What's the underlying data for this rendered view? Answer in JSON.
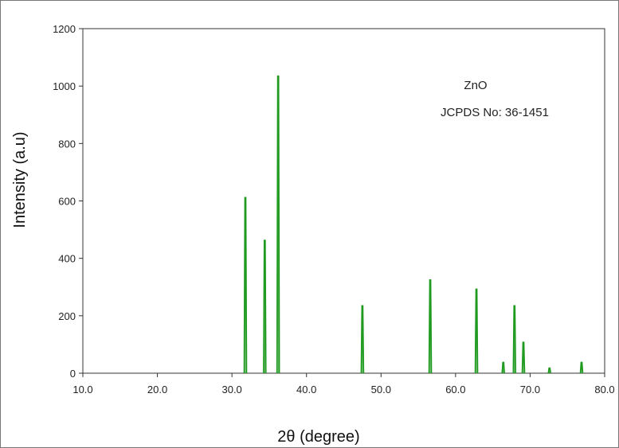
{
  "chart_data": {
    "type": "bar",
    "xlabel": "2θ (degree)",
    "ylabel": "Intensity (a.u)",
    "xlim": [
      10.0,
      80.0
    ],
    "ylim": [
      0,
      1200
    ],
    "x_ticks": [
      "10.0",
      "20.0",
      "30.0",
      "40.0",
      "50.0",
      "60.0",
      "70.0",
      "80.0"
    ],
    "y_ticks": [
      "0",
      "200",
      "400",
      "600",
      "800",
      "1000",
      "1200"
    ],
    "annotations": [
      "ZnO",
      "JCPDS No: 36-1451"
    ],
    "grid": false,
    "color": "#1f9a1f",
    "peaks": [
      {
        "x": 31.8,
        "y": 612
      },
      {
        "x": 34.4,
        "y": 463
      },
      {
        "x": 36.2,
        "y": 1035
      },
      {
        "x": 47.5,
        "y": 235
      },
      {
        "x": 56.6,
        "y": 325
      },
      {
        "x": 62.8,
        "y": 293
      },
      {
        "x": 66.4,
        "y": 38
      },
      {
        "x": 67.9,
        "y": 235
      },
      {
        "x": 69.1,
        "y": 108
      },
      {
        "x": 72.6,
        "y": 18
      },
      {
        "x": 76.9,
        "y": 38
      }
    ]
  }
}
